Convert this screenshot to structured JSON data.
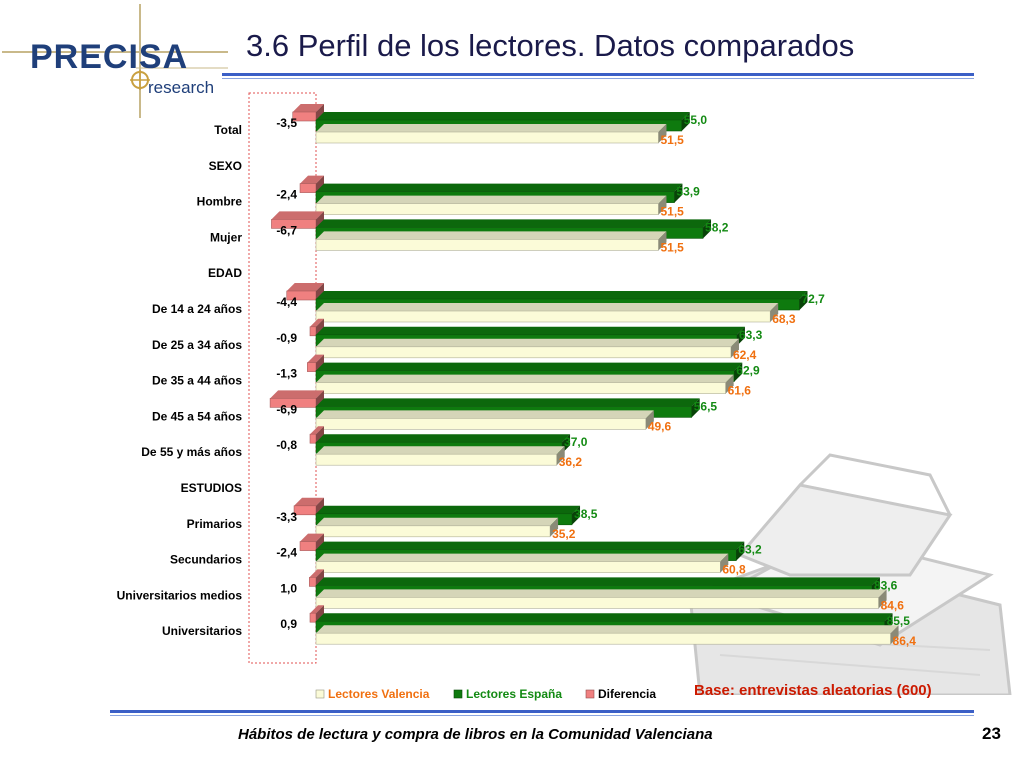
{
  "title": "3.6 Perfil de los lectores. Datos comparados",
  "logo": {
    "name": "PRECISA",
    "sub": "research"
  },
  "base_note": "Base: entrevistas aleatorias (600)",
  "footer": "Hábitos de lectura y compra de libros en la Comunidad Valenciana",
  "page_number": "23",
  "colors": {
    "valencia": "#fbfbd8",
    "espana": "#0e7a0e",
    "diferencia": "#f08080",
    "accent": "#3b5fc6"
  },
  "chart_data": {
    "type": "bar",
    "orientation": "horizontal",
    "categories": [
      "Total",
      "SEXO",
      "Hombre",
      "Mujer",
      "EDAD",
      "De 14 a 24 años",
      "De 25 a 34 años",
      "De 35 a 44 años",
      "De 45 a 54 años",
      "De 55 y más años",
      "ESTUDIOS",
      "Primarios",
      "Secundarios",
      "Universitarios medios",
      "Universitarios"
    ],
    "series": [
      {
        "name": "Lectores Valencia",
        "values": [
          51.5,
          null,
          51.5,
          51.5,
          null,
          68.3,
          62.4,
          61.6,
          49.6,
          36.2,
          null,
          35.2,
          60.8,
          84.6,
          86.4
        ],
        "labels": [
          "51,5",
          "",
          "51,5",
          "51,5",
          "",
          "68,3",
          "62,4",
          "61,6",
          "49,6",
          "36,2",
          "",
          "35,2",
          "60,8",
          "84,6",
          "86,4"
        ]
      },
      {
        "name": "Lectores España",
        "values": [
          55.0,
          null,
          53.9,
          58.2,
          null,
          72.7,
          63.3,
          62.9,
          56.5,
          37.0,
          null,
          38.5,
          63.2,
          83.6,
          85.5
        ],
        "labels": [
          "55,0",
          "",
          "53,9",
          "58,2",
          "",
          "72,7",
          "63,3",
          "62,9",
          "56,5",
          "37,0",
          "",
          "38,5",
          "63,2",
          "83,6",
          "85,5"
        ]
      },
      {
        "name": "Diferencia",
        "values": [
          -3.5,
          null,
          -2.4,
          -6.7,
          null,
          -4.4,
          -0.9,
          -1.3,
          -6.9,
          -0.8,
          null,
          -3.3,
          -2.4,
          1.0,
          0.9
        ],
        "labels": [
          "-3,5",
          "",
          "-2,4",
          "-6,7",
          "",
          "-4,4",
          "-0,9",
          "-1,3",
          "-6,9",
          "-0,8",
          "",
          "-3,3",
          "-2,4",
          "1,0",
          "0,9"
        ]
      }
    ],
    "legend_position": "bottom",
    "grid": false
  }
}
